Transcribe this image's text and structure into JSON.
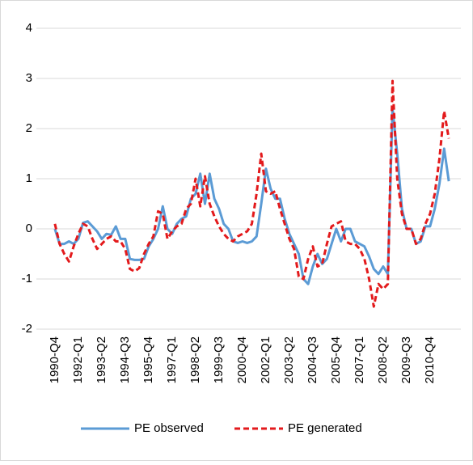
{
  "chart_data": {
    "type": "line",
    "categories": [
      "1990-Q4",
      null,
      null,
      null,
      null,
      "1992-Q1",
      null,
      null,
      null,
      null,
      "1993-Q2",
      null,
      null,
      null,
      null,
      "1994-Q3",
      null,
      null,
      null,
      null,
      "1995-Q4",
      null,
      null,
      null,
      null,
      "1997-Q1",
      null,
      null,
      null,
      null,
      "1998-Q2",
      null,
      null,
      null,
      null,
      "1999-Q3",
      null,
      null,
      null,
      null,
      "2000-Q4",
      null,
      null,
      null,
      null,
      "2002-Q1",
      null,
      null,
      null,
      null,
      "2003-Q2",
      null,
      null,
      null,
      null,
      "2004-Q3",
      null,
      null,
      null,
      null,
      "2005-Q4",
      null,
      null,
      null,
      null,
      "2007-Q1",
      null,
      null,
      null,
      null,
      "2008-Q2",
      null,
      null,
      null,
      null,
      "2009-Q3",
      null,
      null,
      null,
      null,
      "2010-Q4",
      null,
      null,
      null,
      null
    ],
    "series": [
      {
        "name": "PE observed",
        "color": "#5b9bd5",
        "dash": false,
        "values": [
          0.0,
          -0.3,
          -0.3,
          -0.25,
          -0.3,
          -0.2,
          0.12,
          0.15,
          0.05,
          -0.05,
          -0.2,
          -0.1,
          -0.12,
          0.05,
          -0.2,
          -0.2,
          -0.6,
          -0.62,
          -0.62,
          -0.6,
          -0.35,
          -0.2,
          0.0,
          0.45,
          0.0,
          -0.1,
          0.1,
          0.2,
          0.25,
          0.6,
          0.7,
          1.1,
          0.5,
          1.1,
          0.6,
          0.4,
          0.1,
          0.0,
          -0.25,
          -0.28,
          -0.25,
          -0.28,
          -0.25,
          -0.15,
          0.5,
          1.2,
          0.8,
          0.6,
          0.6,
          0.2,
          -0.1,
          -0.3,
          -0.5,
          -1.0,
          -1.1,
          -0.75,
          -0.5,
          -0.7,
          -0.6,
          -0.3,
          0.0,
          -0.25,
          0.0,
          0.0,
          -0.25,
          -0.3,
          -0.35,
          -0.55,
          -0.8,
          -0.9,
          -0.75,
          -0.9,
          2.4,
          1.5,
          0.4,
          0.0,
          0.0,
          -0.3,
          -0.25,
          0.05,
          0.05,
          0.4,
          0.9,
          1.6,
          0.95
        ]
      },
      {
        "name": "PE generated",
        "color": "#e31a1c",
        "dash": true,
        "values": [
          0.1,
          -0.3,
          -0.5,
          -0.65,
          -0.35,
          -0.1,
          0.1,
          0.05,
          -0.2,
          -0.4,
          -0.3,
          -0.2,
          -0.15,
          -0.25,
          -0.25,
          -0.4,
          -0.8,
          -0.85,
          -0.78,
          -0.5,
          -0.3,
          -0.15,
          0.35,
          0.3,
          -0.2,
          -0.05,
          0.05,
          0.1,
          0.4,
          0.5,
          1.0,
          0.45,
          1.05,
          0.5,
          0.25,
          0.05,
          -0.1,
          -0.2,
          -0.25,
          -0.15,
          -0.1,
          -0.05,
          0.1,
          0.7,
          1.5,
          0.75,
          0.7,
          0.75,
          0.4,
          0.1,
          -0.2,
          -0.4,
          -0.95,
          -1.0,
          -0.6,
          -0.35,
          -0.75,
          -0.7,
          -0.3,
          0.05,
          0.1,
          0.15,
          -0.25,
          -0.3,
          -0.3,
          -0.4,
          -0.6,
          -1.0,
          -1.55,
          -1.1,
          -1.2,
          -1.1,
          2.95,
          1.0,
          0.3,
          0.0,
          0.0,
          -0.3,
          -0.2,
          0.1,
          0.3,
          0.7,
          1.4,
          2.35,
          1.8
        ]
      }
    ],
    "ylim": [
      -2,
      4
    ],
    "yticks": [
      -2,
      -1,
      0,
      1,
      2,
      3,
      4
    ],
    "grid": true,
    "legend": "bottom"
  }
}
